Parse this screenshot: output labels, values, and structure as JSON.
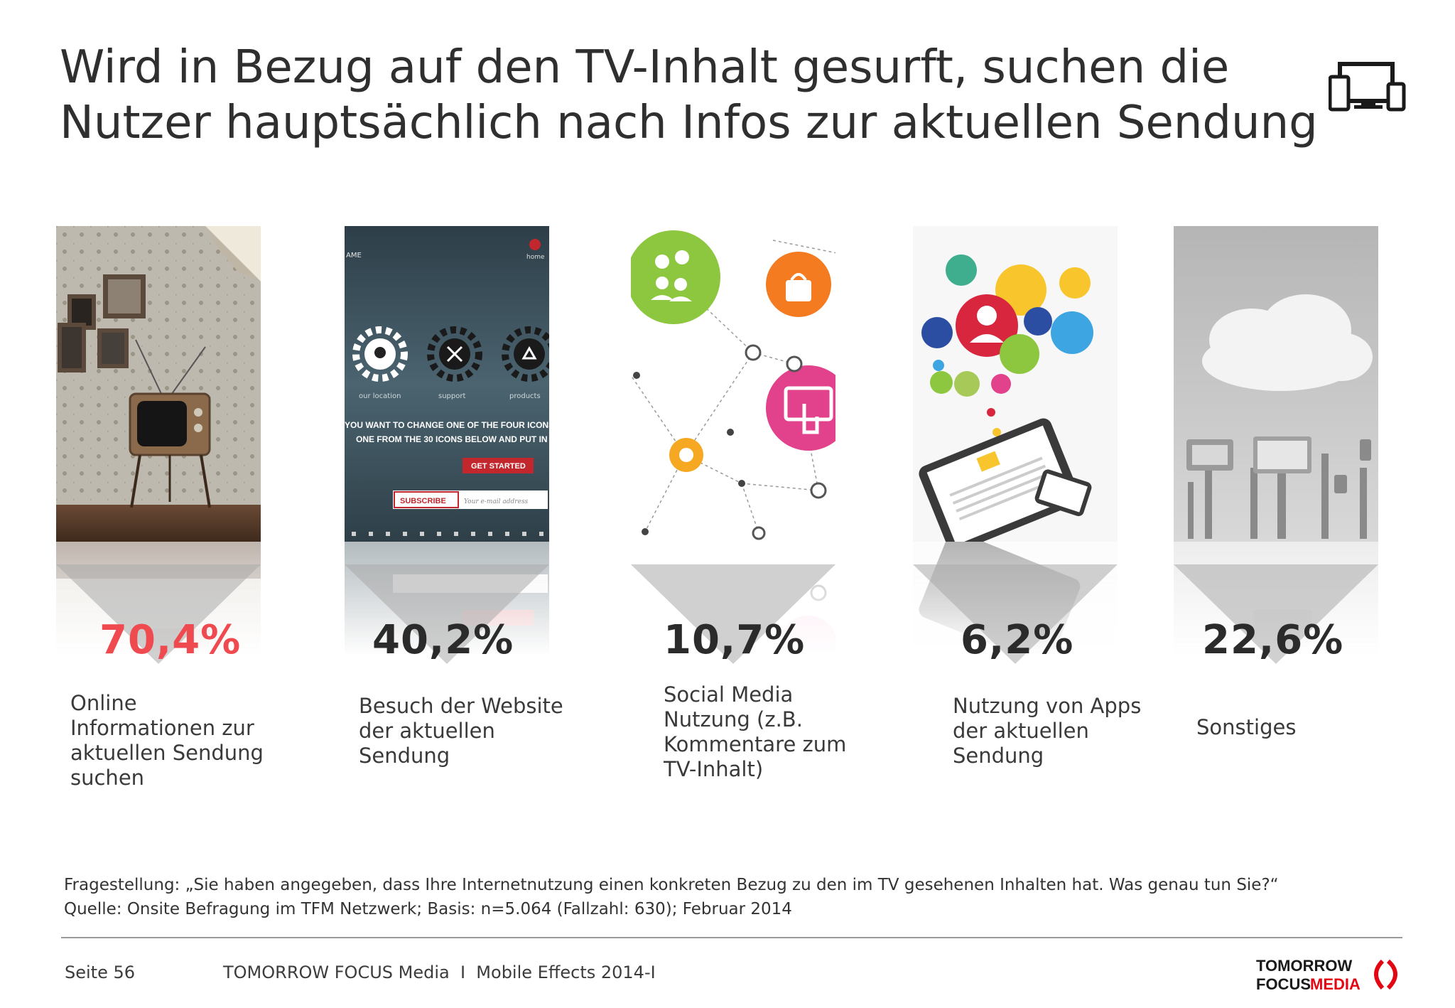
{
  "header": {
    "title_line1": "Wird in Bezug auf den TV-Inhalt gesurft, suchen die",
    "title_line2": "Nutzer hauptsächlich nach Infos zur aktuellen Sendung",
    "icon": "devices-icon"
  },
  "colors": {
    "highlight": "#ef4a4f",
    "text": "#333333",
    "arrow": "#a9a9a9",
    "logo_red": "#e30613"
  },
  "cards": [
    {
      "value": "70,4%",
      "label": "Online Informationen zur aktuellen Sendung suchen",
      "image": "retro-tv-photo"
    },
    {
      "value": "40,2%",
      "label": "Besuch der Website der aktuellen Sendung",
      "image": "website-screenshot"
    },
    {
      "value": "10,7%",
      "label": "Social Media Nutzung (z.B. Kommentare zum TV-Inhalt)",
      "image": "social-network-illustration"
    },
    {
      "value": "6,2%",
      "label": "Nutzung von Apps der aktuellen Sendung",
      "image": "tablet-apps-illustration"
    },
    {
      "value": "22,6%",
      "label": "Sonstiges",
      "image": "cloud-devices-photo"
    }
  ],
  "website_mock": {
    "brand_fragment": "AME",
    "home": "home",
    "gears": [
      "our location",
      "support",
      "products"
    ],
    "headline1": "YOU WANT TO CHANGE ONE OF THE FOUR ICONS A",
    "headline2": "ONE FROM THE 30 ICONS BELOW AND PUT IN",
    "cta": "GET STARTED",
    "subscribe": "SUBSCRIBE",
    "email_placeholder": "Your e-mail address"
  },
  "note": {
    "question": "Fragestellung: „Sie haben angegeben, dass Ihre Internetnutzung einen konkreten Bezug zu den im TV gesehenen Inhalten hat. Was genau tun Sie?“",
    "source": "Quelle: Onsite Befragung im TFM Netzwerk; Basis: n=5.064 (Fallzahl: 630); Februar 2014"
  },
  "footer": {
    "page": "Seite 56",
    "publisher": "TOMORROW FOCUS Media  I  Mobile Effects 2014-I",
    "logo_line1": "TOMORROW",
    "logo_line2a": "FOCUS",
    "logo_line2b": "MEDIA"
  }
}
